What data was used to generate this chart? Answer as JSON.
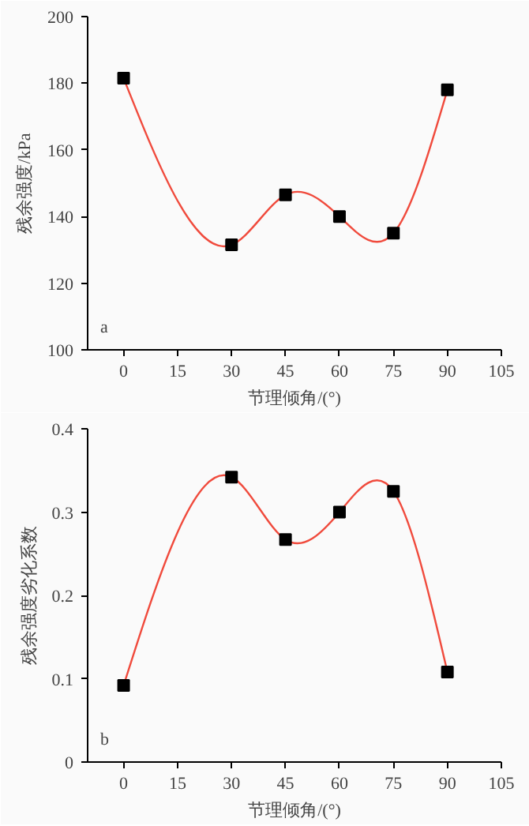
{
  "chart_data": [
    {
      "type": "line",
      "x": [
        0,
        30,
        45,
        60,
        75,
        90
      ],
      "values": [
        181.5,
        131.5,
        146.5,
        140,
        135,
        178
      ],
      "color": "#f04a3c",
      "marker": "square",
      "xlabel": "节理倾角/(°)",
      "ylabel": "残余强度/kPa",
      "xlim": [
        -10,
        105
      ],
      "xticks": [
        0,
        15,
        30,
        45,
        60,
        75,
        90,
        105
      ],
      "ylim": [
        100,
        200
      ],
      "yticks": [
        100,
        120,
        140,
        160,
        180,
        200
      ],
      "grid": false,
      "annotations": [
        "a"
      ]
    },
    {
      "type": "line",
      "x": [
        0,
        30,
        45,
        60,
        75,
        90
      ],
      "values": [
        0.092,
        0.342,
        0.267,
        0.3,
        0.325,
        0.108
      ],
      "color": "#f04a3c",
      "marker": "square",
      "xlabel": "节理倾角/(°)",
      "ylabel": "残余强度劣化系数",
      "xlim": [
        -10,
        105
      ],
      "xticks": [
        0,
        15,
        30,
        45,
        60,
        75,
        90,
        105
      ],
      "ylim": [
        0,
        0.4
      ],
      "yticks": [
        0,
        0.1,
        0.2,
        0.3,
        0.4
      ],
      "grid": false,
      "annotations": [
        "b"
      ]
    }
  ]
}
